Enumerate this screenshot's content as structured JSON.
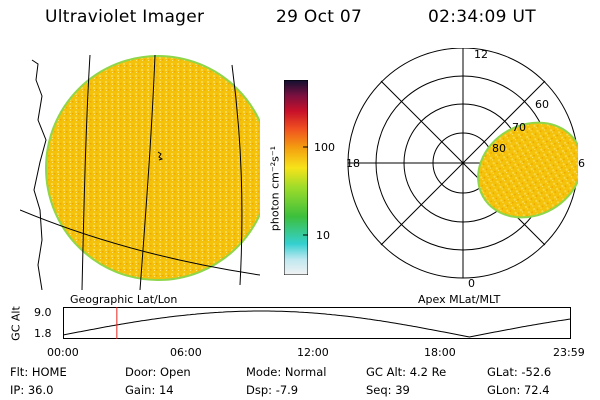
{
  "header": {
    "instrument": "Ultraviolet Imager",
    "date": "29 Oct 07",
    "time": "02:34:09 UT"
  },
  "panels": {
    "geo_label": "Geographic Lat/Lon",
    "apex_label": "Apex MLat/MLT"
  },
  "colorbar": {
    "unit_label": "photon cm⁻²s⁻¹",
    "ticks": [
      "100",
      "10"
    ]
  },
  "polar": {
    "mlt_labels": {
      "top": "12",
      "left": "18",
      "right": "6",
      "bottom": "0"
    },
    "lat_labels": [
      "60",
      "70",
      "80"
    ]
  },
  "altitude_plot": {
    "ylabel": "GC Alt",
    "ymax": "9.0",
    "ymin": "1.8",
    "time_ticks": [
      "00:00",
      "06:00",
      "12:00",
      "18:00",
      "23:59"
    ],
    "current_time_fraction": 0.106
  },
  "status": {
    "row1": [
      {
        "label": "Flt:",
        "value": "HOME"
      },
      {
        "label": "Door:",
        "value": "Open"
      },
      {
        "label": "Mode:",
        "value": "Normal"
      },
      {
        "label": "GC Alt:",
        "value": "4.2 Re"
      },
      {
        "label": "GLat:",
        "value": "-52.6"
      }
    ],
    "row2": [
      {
        "label": "IP:",
        "value": "36.0"
      },
      {
        "label": "Gain:",
        "value": "14"
      },
      {
        "label": "Dsp:",
        "value": "-7.9"
      },
      {
        "label": "Seq:",
        "value": "39"
      },
      {
        "label": "GLon:",
        "value": "72.4"
      }
    ]
  },
  "colors": {
    "image_fill": "#f4c20a",
    "image_edge": "#8fd64a",
    "marker": "#e8231f"
  }
}
